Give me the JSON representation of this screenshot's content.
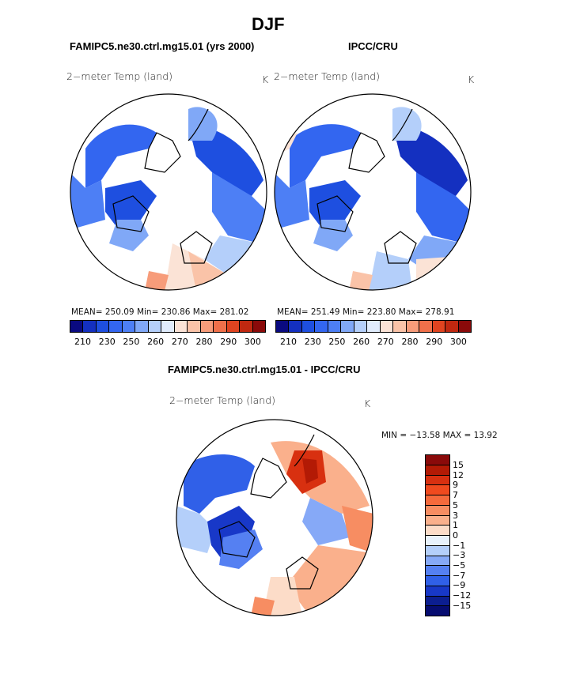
{
  "figure": {
    "title": "DJF",
    "left_subtitle": "FAMIPC5.ne30.ctrl.mg15.01 (yrs 2000)",
    "right_subtitle": "IPCC/CRU",
    "diff_subtitle": "FAMIPC5.ne30.ctrl.mg15.01 - IPCC/CRU"
  },
  "panels": {
    "left": {
      "label": "2−meter Temp (land)",
      "units": "K",
      "stats": "MEAN= 250.09   Min= 230.86   Max= 281.02"
    },
    "right": {
      "label": "2−meter Temp (land)",
      "units": "K",
      "stats": "MEAN= 251.49   Min= 223.80   Max= 278.91"
    },
    "diff": {
      "label": "2−meter Temp (land)",
      "units": "K",
      "stats": "MIN = −13.58 MAX =  13.92"
    }
  },
  "colorbar_abs": {
    "ticks": [
      "210",
      "230",
      "250",
      "260",
      "270",
      "280",
      "290",
      "300"
    ],
    "colors": [
      "#0a0a80",
      "#1430c0",
      "#1e4fe0",
      "#3366f0",
      "#4d7ff5",
      "#80a8f7",
      "#b4cffa",
      "#e0ecfc",
      "#fbe3d6",
      "#fac3a8",
      "#f79c7a",
      "#f0704a",
      "#e04420",
      "#c02810",
      "#8a0a0a"
    ]
  },
  "colorbar_diff": {
    "ticks": [
      "15",
      "12",
      "9",
      "7",
      "5",
      "3",
      "1",
      "0",
      "−1",
      "−3",
      "−5",
      "−7",
      "−9",
      "−12",
      "−15"
    ],
    "colors": [
      "#8a0a0a",
      "#b31a05",
      "#d83010",
      "#f04a1e",
      "#f56a3c",
      "#f78d62",
      "#fab08c",
      "#fcdcc8",
      "#e8f2fc",
      "#b4cffa",
      "#86a9f7",
      "#5580f2",
      "#3060e8",
      "#1838c8",
      "#0c1e90",
      "#060c70"
    ]
  }
}
